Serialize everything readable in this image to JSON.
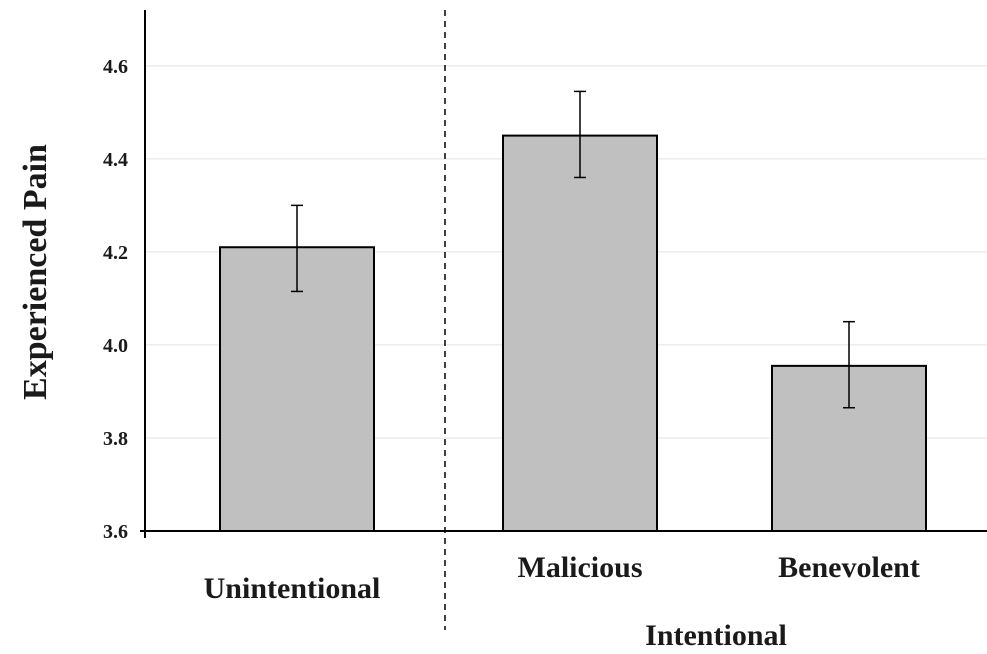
{
  "chart_data": {
    "type": "bar",
    "title": "",
    "xlabel": "",
    "ylabel": "Experienced Pain",
    "ylim": [
      3.6,
      4.72
    ],
    "yticks": [
      3.6,
      3.8,
      4.0,
      4.2,
      4.4,
      4.6
    ],
    "ytick_labels": [
      "3.6",
      "3.8",
      "4.0",
      "4.2",
      "4.4",
      "4.6"
    ],
    "grid": true,
    "legend": "none",
    "categories": [
      "Unintentional",
      "Malicious",
      "Benevolent"
    ],
    "values": [
      4.21,
      4.45,
      3.955
    ],
    "error_upper": [
      4.3,
      4.545,
      4.05
    ],
    "error_lower": [
      4.115,
      4.36,
      3.865
    ],
    "group_label": "Intentional",
    "bar_color": "#c0c0c0",
    "edge_color": "#000000",
    "grid_color": "#e3e3e3"
  }
}
